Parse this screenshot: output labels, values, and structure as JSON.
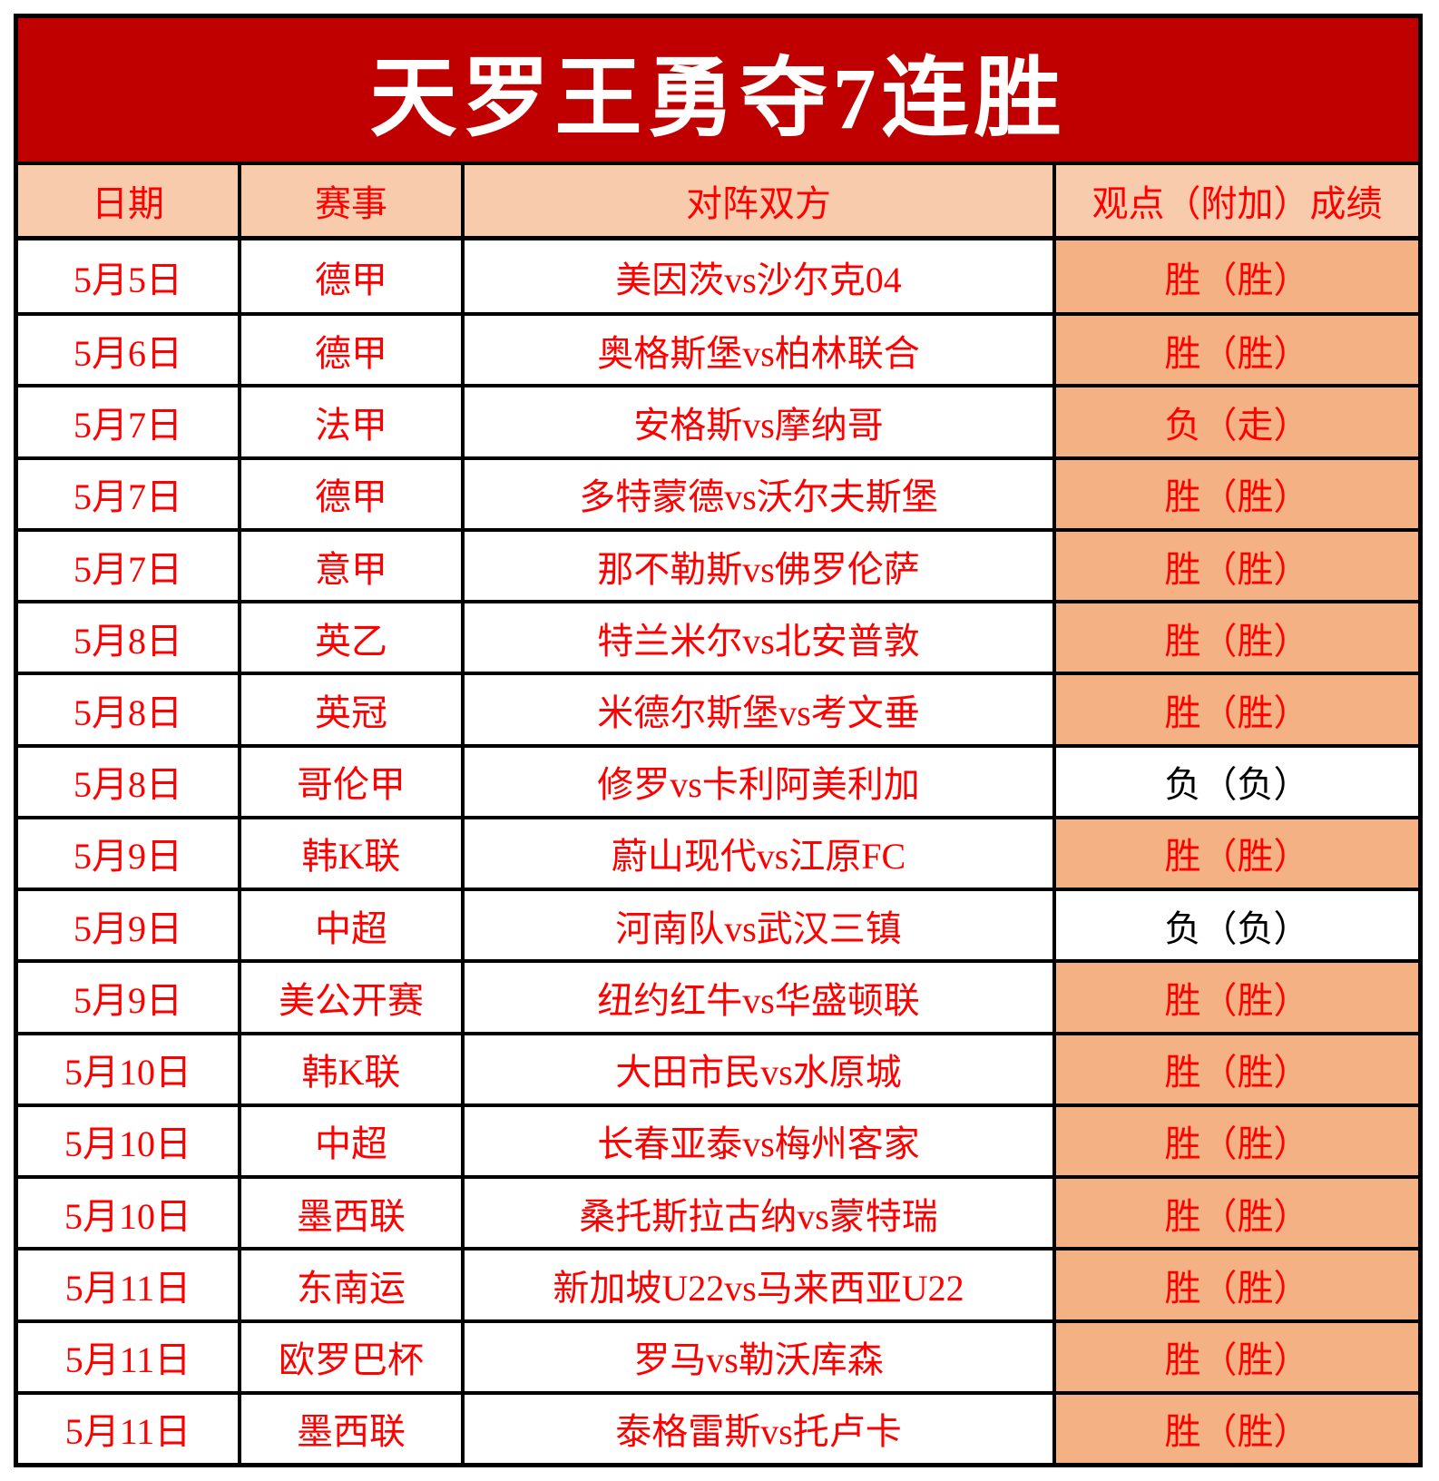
{
  "chart_data": {
    "type": "table",
    "title": "天罗王勇夺7连胜",
    "columns": [
      "日期",
      "赛事",
      "对阵双方",
      "观点（附加）成绩"
    ],
    "rows": [
      {
        "date": "5月5日",
        "league": "德甲",
        "matchup": "美因茨vs沙尔克04",
        "result": "胜（胜）",
        "highlight": true
      },
      {
        "date": "5月6日",
        "league": "德甲",
        "matchup": "奥格斯堡vs柏林联合",
        "result": "胜（胜）",
        "highlight": true
      },
      {
        "date": "5月7日",
        "league": "法甲",
        "matchup": "安格斯vs摩纳哥",
        "result": "负（走）",
        "highlight": true
      },
      {
        "date": "5月7日",
        "league": "德甲",
        "matchup": "多特蒙德vs沃尔夫斯堡",
        "result": "胜（胜）",
        "highlight": true
      },
      {
        "date": "5月7日",
        "league": "意甲",
        "matchup": "那不勒斯vs佛罗伦萨",
        "result": "胜（胜）",
        "highlight": true
      },
      {
        "date": "5月8日",
        "league": "英乙",
        "matchup": "特兰米尔vs北安普敦",
        "result": "胜（胜）",
        "highlight": true
      },
      {
        "date": "5月8日",
        "league": "英冠",
        "matchup": "米德尔斯堡vs考文垂",
        "result": "胜（胜）",
        "highlight": true
      },
      {
        "date": "5月8日",
        "league": "哥伦甲",
        "matchup": "修罗vs卡利阿美利加",
        "result": "负（负）",
        "highlight": false
      },
      {
        "date": "5月9日",
        "league": "韩K联",
        "matchup": "蔚山现代vs江原FC",
        "result": "胜（胜）",
        "highlight": true
      },
      {
        "date": "5月9日",
        "league": "中超",
        "matchup": "河南队vs武汉三镇",
        "result": "负（负）",
        "highlight": false
      },
      {
        "date": "5月9日",
        "league": "美公开赛",
        "matchup": "纽约红牛vs华盛顿联",
        "result": "胜（胜）",
        "highlight": true
      },
      {
        "date": "5月10日",
        "league": "韩K联",
        "matchup": "大田市民vs水原城",
        "result": "胜（胜）",
        "highlight": true
      },
      {
        "date": "5月10日",
        "league": "中超",
        "matchup": "长春亚泰vs梅州客家",
        "result": "胜（胜）",
        "highlight": true
      },
      {
        "date": "5月10日",
        "league": "墨西联",
        "matchup": "桑托斯拉古纳vs蒙特瑞",
        "result": "胜（胜）",
        "highlight": true
      },
      {
        "date": "5月11日",
        "league": "东南运",
        "matchup": "新加坡U22vs马来西亚U22",
        "result": "胜（胜）",
        "highlight": true
      },
      {
        "date": "5月11日",
        "league": "欧罗巴杯",
        "matchup": "罗马vs勒沃库森",
        "result": "胜（胜）",
        "highlight": true
      },
      {
        "date": "5月11日",
        "league": "墨西联",
        "matchup": "泰格雷斯vs托卢卡",
        "result": "胜（胜）",
        "highlight": true
      }
    ]
  },
  "colors": {
    "title_bg": "#C00000",
    "title_text": "#FFFFFF",
    "header_bg": "#F8CBAD",
    "result_bg": "#F4B183",
    "text_red": "#FF0000",
    "negative_text": "#000000",
    "border": "#000000",
    "page_bg": "#FFFFFF"
  }
}
